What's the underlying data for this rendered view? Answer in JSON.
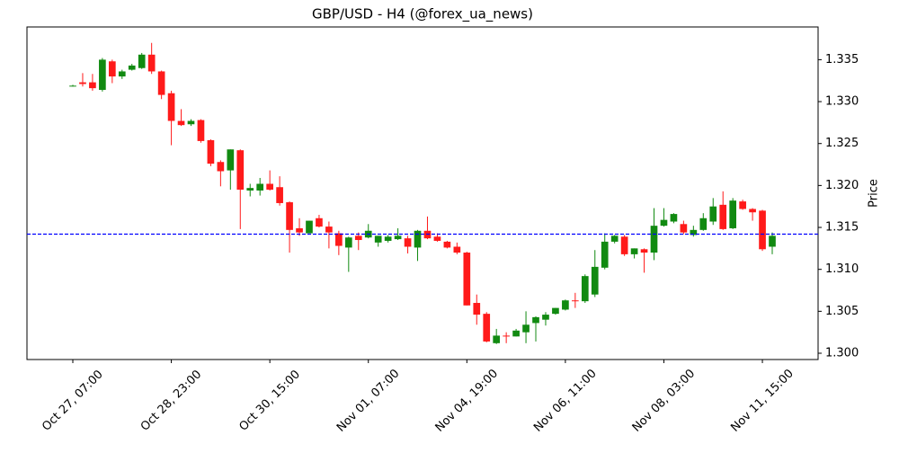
{
  "chart_data": {
    "type": "candlestick",
    "title": "GBP/USD - H4 (@forex_ua_news)",
    "ylabel": "Price",
    "categories": [
      "Oct 27, 07:00",
      null,
      null,
      null,
      null,
      null,
      null,
      null,
      null,
      null,
      "Oct 28, 23:00",
      null,
      null,
      null,
      null,
      null,
      null,
      null,
      null,
      null,
      "Oct 30, 15:00",
      null,
      null,
      null,
      null,
      null,
      null,
      null,
      null,
      null,
      "Nov 01, 07:00",
      null,
      null,
      null,
      null,
      null,
      null,
      null,
      null,
      null,
      "Nov 04, 19:00",
      null,
      null,
      null,
      null,
      null,
      null,
      null,
      null,
      null,
      "Nov 06, 11:00",
      null,
      null,
      null,
      null,
      null,
      null,
      null,
      null,
      null,
      "Nov 08, 03:00",
      null,
      null,
      null,
      null,
      null,
      null,
      null,
      null,
      null,
      "Nov 11, 15:00",
      null
    ],
    "open": [
      1.3319,
      1.3323,
      1.3323,
      1.3314,
      1.3348,
      1.333,
      1.3338,
      1.334,
      1.3356,
      1.3336,
      1.331,
      1.3277,
      1.3273,
      1.3278,
      1.3254,
      1.3228,
      1.3218,
      1.3242,
      1.3194,
      1.3194,
      1.3202,
      1.3198,
      1.318,
      1.3149,
      1.3143,
      1.3161,
      1.3151,
      1.3143,
      1.3126,
      1.314,
      1.3138,
      1.3132,
      1.3134,
      1.3136,
      1.3137,
      1.3126,
      1.3146,
      1.3139,
      1.3133,
      1.3127,
      1.312,
      1.306,
      1.3047,
      1.3012,
      1.3021,
      1.302,
      1.3025,
      1.3036,
      1.304,
      1.3047,
      1.3052,
      1.3063,
      1.3062,
      1.307,
      1.3102,
      1.3133,
      1.3139,
      1.3118,
      1.3124,
      1.312,
      1.3152,
      1.3157,
      1.3154,
      1.3141,
      1.3147,
      1.3157,
      1.3177,
      1.3149,
      1.3181,
      1.3172,
      1.317,
      1.3127
    ],
    "high": [
      1.332,
      1.3334,
      1.3333,
      1.3352,
      1.335,
      1.3338,
      1.3345,
      1.3358,
      1.337,
      1.3337,
      1.3313,
      1.3291,
      1.3279,
      1.3279,
      1.3255,
      1.323,
      1.3243,
      1.3243,
      1.3202,
      1.3209,
      1.3218,
      1.3211,
      1.3181,
      1.3161,
      1.3158,
      1.3165,
      1.3157,
      1.3146,
      1.3139,
      1.3144,
      1.3154,
      1.314,
      1.3141,
      1.3149,
      1.314,
      1.3147,
      1.3163,
      1.3143,
      1.3134,
      1.3132,
      1.3121,
      1.307,
      1.3049,
      1.3029,
      1.3025,
      1.3029,
      1.305,
      1.3044,
      1.3049,
      1.3054,
      1.3064,
      1.3072,
      1.3094,
      1.3123,
      1.3143,
      1.3141,
      1.3141,
      1.3125,
      1.3125,
      1.3173,
      1.3173,
      1.3167,
      1.3158,
      1.3152,
      1.3167,
      1.3185,
      1.3193,
      1.3185,
      1.3183,
      1.3173,
      1.3171,
      1.3144
    ],
    "low": [
      1.3318,
      1.3318,
      1.3313,
      1.3312,
      1.3322,
      1.3327,
      1.3337,
      1.3339,
      1.3333,
      1.3303,
      1.3248,
      1.3271,
      1.3271,
      1.3251,
      1.3223,
      1.3199,
      1.3195,
      1.3148,
      1.3187,
      1.3188,
      1.3194,
      1.3176,
      1.312,
      1.314,
      1.3143,
      1.315,
      1.3125,
      1.3117,
      1.3097,
      1.3123,
      1.3137,
      1.3127,
      1.3132,
      1.3135,
      1.3119,
      1.311,
      1.3136,
      1.3133,
      1.3125,
      1.3118,
      1.3057,
      1.3034,
      1.3013,
      1.3011,
      1.3012,
      1.302,
      1.3012,
      1.3014,
      1.3033,
      1.3046,
      1.3051,
      1.3054,
      1.306,
      1.3067,
      1.31,
      1.3131,
      1.3116,
      1.3113,
      1.3096,
      1.3111,
      1.3151,
      1.3155,
      1.3142,
      1.3139,
      1.3146,
      1.3153,
      1.3147,
      1.3148,
      1.3171,
      1.3158,
      1.3122,
      1.3118
    ],
    "close": [
      1.3319,
      1.3321,
      1.3316,
      1.335,
      1.333,
      1.3336,
      1.3343,
      1.3356,
      1.3336,
      1.3308,
      1.3277,
      1.3272,
      1.3277,
      1.3253,
      1.3226,
      1.3217,
      1.3243,
      1.3195,
      1.3197,
      1.3202,
      1.3195,
      1.3179,
      1.3147,
      1.3144,
      1.3158,
      1.3151,
      1.3144,
      1.3128,
      1.3138,
      1.3135,
      1.3146,
      1.314,
      1.3139,
      1.314,
      1.3127,
      1.3146,
      1.3137,
      1.3134,
      1.3126,
      1.312,
      1.3057,
      1.3046,
      1.3014,
      1.3021,
      1.302,
      1.3027,
      1.3034,
      1.3043,
      1.3046,
      1.3054,
      1.3063,
      1.3062,
      1.3092,
      1.3103,
      1.3133,
      1.314,
      1.3118,
      1.3125,
      1.312,
      1.3152,
      1.3159,
      1.3166,
      1.3144,
      1.3147,
      1.3161,
      1.3175,
      1.3148,
      1.3182,
      1.3172,
      1.3168,
      1.3124,
      1.314
    ],
    "up_color": "#118a11",
    "down_color": "#ff1a1a",
    "hline": {
      "value": 1.3142,
      "color": "#0000ff"
    },
    "ylim": [
      1.29925,
      1.3389
    ],
    "yticks": [
      {
        "value": 1.3,
        "label": "1.300"
      },
      1.305,
      {
        "value": 1.31,
        "label": "1.310"
      },
      1.315,
      {
        "value": 1.32,
        "label": "1.320"
      },
      1.325,
      {
        "value": 1.33,
        "label": "1.330"
      },
      1.335
    ],
    "y_axis_side": "right"
  }
}
